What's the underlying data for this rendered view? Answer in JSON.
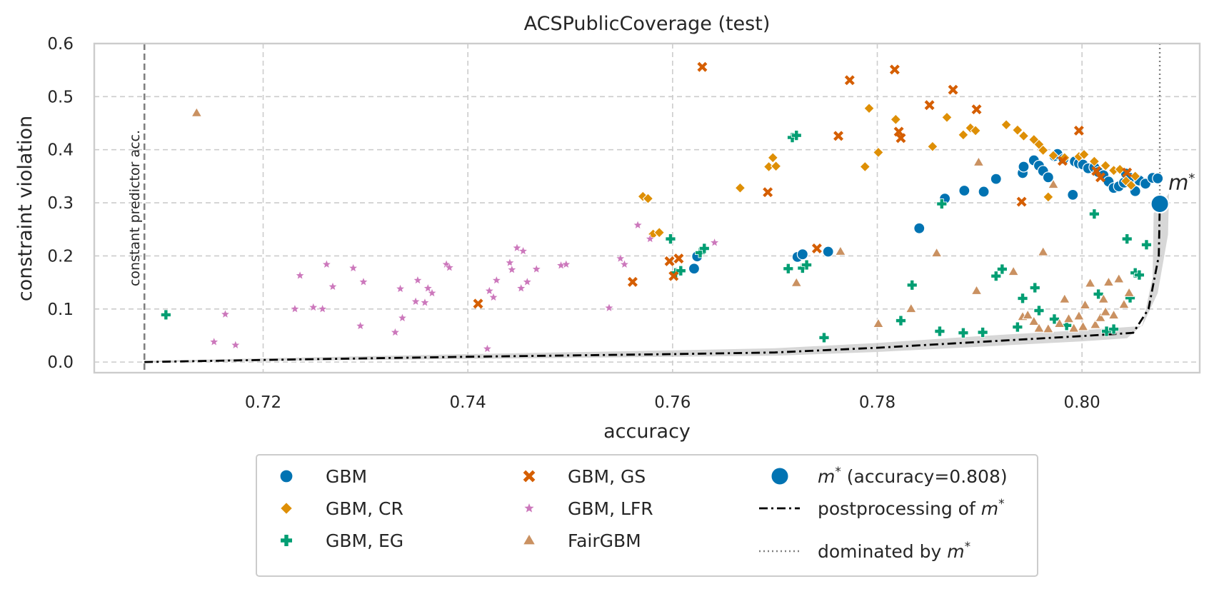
{
  "chart_data": {
    "type": "scatter",
    "title": "ACSPublicCoverage (test)",
    "xlabel": "accuracy",
    "ylabel": "constraint violation",
    "xlim": [
      0.7035,
      0.8115
    ],
    "ylim": [
      -0.02,
      0.6
    ],
    "xticks": [
      0.72,
      0.74,
      0.76,
      0.78,
      0.8
    ],
    "xtick_labels": [
      "0.72",
      "0.74",
      "0.76",
      "0.78",
      "0.80"
    ],
    "yticks": [
      0.0,
      0.1,
      0.2,
      0.3,
      0.4,
      0.5,
      0.6
    ],
    "ytick_labels": [
      "0.0",
      "0.1",
      "0.2",
      "0.3",
      "0.4",
      "0.5",
      "0.6"
    ],
    "grid": true,
    "legend_placement": "below",
    "constant_predictor": {
      "x": 0.7084,
      "label": "constant predictor acc."
    },
    "m_star": {
      "x": 0.8076,
      "y": 0.298,
      "label": "m*",
      "legend_label": "(accuracy=0.808)",
      "color": "#0173b2"
    },
    "dominated_line": {
      "x": 0.8076,
      "legend_label": "dominated by"
    },
    "postprocessing": {
      "legend_label": "postprocessing of",
      "x": [
        0.7084,
        0.72,
        0.74,
        0.76,
        0.77,
        0.78,
        0.79,
        0.8,
        0.805,
        0.8065,
        0.8075,
        0.8076
      ],
      "y": [
        0.0,
        0.004,
        0.01,
        0.015,
        0.018,
        0.027,
        0.038,
        0.049,
        0.055,
        0.1,
        0.2,
        0.298
      ],
      "band_upper": [
        0.002,
        0.007,
        0.015,
        0.022,
        0.026,
        0.036,
        0.049,
        0.06,
        0.068,
        0.13,
        0.24,
        0.318
      ],
      "band_lower": [
        0.0,
        0.002,
        0.006,
        0.01,
        0.012,
        0.019,
        0.029,
        0.039,
        0.045,
        0.07,
        0.16,
        0.28
      ]
    },
    "series": [
      {
        "name": "GBM",
        "marker": "circle",
        "color": "#0173b2",
        "points": [
          [
            0.7621,
            0.176
          ],
          [
            0.7624,
            0.199
          ],
          [
            0.7722,
            0.198
          ],
          [
            0.7727,
            0.203
          ],
          [
            0.7752,
            0.208
          ],
          [
            0.7841,
            0.252
          ],
          [
            0.7866,
            0.308
          ],
          [
            0.7885,
            0.323
          ],
          [
            0.7904,
            0.321
          ],
          [
            0.7916,
            0.345
          ],
          [
            0.7942,
            0.356
          ],
          [
            0.7943,
            0.368
          ],
          [
            0.7953,
            0.38
          ],
          [
            0.7958,
            0.37
          ],
          [
            0.7962,
            0.36
          ],
          [
            0.7967,
            0.348
          ],
          [
            0.7973,
            0.388
          ],
          [
            0.7976,
            0.392
          ],
          [
            0.7982,
            0.383
          ],
          [
            0.7991,
            0.315
          ],
          [
            0.7993,
            0.378
          ],
          [
            0.7997,
            0.374
          ],
          [
            0.8001,
            0.372
          ],
          [
            0.8006,
            0.365
          ],
          [
            0.8012,
            0.367
          ],
          [
            0.8016,
            0.358
          ],
          [
            0.8021,
            0.352
          ],
          [
            0.8026,
            0.34
          ],
          [
            0.8031,
            0.328
          ],
          [
            0.8036,
            0.331
          ],
          [
            0.8041,
            0.338
          ],
          [
            0.8043,
            0.355
          ],
          [
            0.8047,
            0.347
          ],
          [
            0.8052,
            0.322
          ],
          [
            0.8056,
            0.342
          ],
          [
            0.8062,
            0.336
          ],
          [
            0.8069,
            0.347
          ],
          [
            0.8074,
            0.346
          ]
        ]
      },
      {
        "name": "GBM, CR",
        "marker": "diamond",
        "color": "#de8f05",
        "points": [
          [
            0.7571,
            0.312
          ],
          [
            0.7576,
            0.308
          ],
          [
            0.7581,
            0.241
          ],
          [
            0.7587,
            0.244
          ],
          [
            0.7666,
            0.328
          ],
          [
            0.7694,
            0.368
          ],
          [
            0.7698,
            0.385
          ],
          [
            0.7701,
            0.369
          ],
          [
            0.7788,
            0.368
          ],
          [
            0.7792,
            0.478
          ],
          [
            0.7801,
            0.395
          ],
          [
            0.7818,
            0.457
          ],
          [
            0.7854,
            0.406
          ],
          [
            0.7868,
            0.461
          ],
          [
            0.7884,
            0.428
          ],
          [
            0.7891,
            0.441
          ],
          [
            0.7896,
            0.436
          ],
          [
            0.7926,
            0.447
          ],
          [
            0.7937,
            0.437
          ],
          [
            0.7943,
            0.426
          ],
          [
            0.7953,
            0.419
          ],
          [
            0.7958,
            0.41
          ],
          [
            0.7962,
            0.399
          ],
          [
            0.7967,
            0.311
          ],
          [
            0.7972,
            0.389
          ],
          [
            0.7983,
            0.385
          ],
          [
            0.7997,
            0.387
          ],
          [
            0.8002,
            0.391
          ],
          [
            0.8012,
            0.378
          ],
          [
            0.8023,
            0.37
          ],
          [
            0.8031,
            0.361
          ],
          [
            0.8037,
            0.363
          ],
          [
            0.8043,
            0.341
          ],
          [
            0.8048,
            0.333
          ],
          [
            0.8052,
            0.35
          ]
        ]
      },
      {
        "name": "GBM, EG",
        "marker": "plus",
        "color": "#029e73",
        "points": [
          [
            0.7105,
            0.089
          ],
          [
            0.7598,
            0.232
          ],
          [
            0.7603,
            0.168
          ],
          [
            0.7608,
            0.172
          ],
          [
            0.7627,
            0.206
          ],
          [
            0.7631,
            0.214
          ],
          [
            0.7713,
            0.176
          ],
          [
            0.7717,
            0.423
          ],
          [
            0.7721,
            0.427
          ],
          [
            0.7727,
            0.177
          ],
          [
            0.7731,
            0.183
          ],
          [
            0.7748,
            0.046
          ],
          [
            0.7823,
            0.078
          ],
          [
            0.7834,
            0.145
          ],
          [
            0.7861,
            0.058
          ],
          [
            0.7863,
            0.298
          ],
          [
            0.7884,
            0.055
          ],
          [
            0.7903,
            0.056
          ],
          [
            0.7916,
            0.162
          ],
          [
            0.7922,
            0.175
          ],
          [
            0.7937,
            0.066
          ],
          [
            0.7942,
            0.12
          ],
          [
            0.7954,
            0.14
          ],
          [
            0.7958,
            0.097
          ],
          [
            0.7973,
            0.081
          ],
          [
            0.7985,
            0.069
          ],
          [
            0.8012,
            0.279
          ],
          [
            0.8016,
            0.128
          ],
          [
            0.8024,
            0.058
          ],
          [
            0.8031,
            0.062
          ],
          [
            0.8044,
            0.232
          ],
          [
            0.8047,
            0.121
          ],
          [
            0.8052,
            0.168
          ],
          [
            0.8056,
            0.164
          ],
          [
            0.8063,
            0.221
          ]
        ]
      },
      {
        "name": "GBM, GS",
        "marker": "x",
        "color": "#d55e00",
        "points": [
          [
            0.741,
            0.11
          ],
          [
            0.7561,
            0.151
          ],
          [
            0.7597,
            0.19
          ],
          [
            0.7601,
            0.162
          ],
          [
            0.7606,
            0.195
          ],
          [
            0.7629,
            0.556
          ],
          [
            0.7693,
            0.32
          ],
          [
            0.7741,
            0.214
          ],
          [
            0.7762,
            0.426
          ],
          [
            0.7773,
            0.531
          ],
          [
            0.7817,
            0.551
          ],
          [
            0.7821,
            0.434
          ],
          [
            0.7823,
            0.422
          ],
          [
            0.7851,
            0.484
          ],
          [
            0.7874,
            0.513
          ],
          [
            0.7897,
            0.476
          ],
          [
            0.7941,
            0.302
          ],
          [
            0.7981,
            0.379
          ],
          [
            0.7997,
            0.436
          ],
          [
            0.8014,
            0.36
          ],
          [
            0.8018,
            0.348
          ],
          [
            0.8044,
            0.357
          ]
        ]
      },
      {
        "name": "GBM, LFR",
        "marker": "star",
        "color": "#cc78bc",
        "points": [
          [
            0.7152,
            0.038
          ],
          [
            0.7163,
            0.09
          ],
          [
            0.7173,
            0.032
          ],
          [
            0.7231,
            0.1
          ],
          [
            0.7236,
            0.163
          ],
          [
            0.7249,
            0.103
          ],
          [
            0.7258,
            0.1
          ],
          [
            0.7262,
            0.184
          ],
          [
            0.7268,
            0.142
          ],
          [
            0.7288,
            0.177
          ],
          [
            0.7295,
            0.068
          ],
          [
            0.7298,
            0.151
          ],
          [
            0.7329,
            0.056
          ],
          [
            0.7334,
            0.138
          ],
          [
            0.7336,
            0.083
          ],
          [
            0.7349,
            0.114
          ],
          [
            0.7351,
            0.154
          ],
          [
            0.7358,
            0.112
          ],
          [
            0.7361,
            0.139
          ],
          [
            0.7365,
            0.13
          ],
          [
            0.7379,
            0.184
          ],
          [
            0.7382,
            0.178
          ],
          [
            0.7419,
            0.025
          ],
          [
            0.7421,
            0.134
          ],
          [
            0.7425,
            0.122
          ],
          [
            0.7428,
            0.154
          ],
          [
            0.7441,
            0.187
          ],
          [
            0.7443,
            0.174
          ],
          [
            0.7448,
            0.215
          ],
          [
            0.7452,
            0.139
          ],
          [
            0.7454,
            0.209
          ],
          [
            0.7458,
            0.151
          ],
          [
            0.7467,
            0.175
          ],
          [
            0.7491,
            0.182
          ],
          [
            0.7496,
            0.184
          ],
          [
            0.7538,
            0.102
          ],
          [
            0.7549,
            0.195
          ],
          [
            0.7553,
            0.184
          ],
          [
            0.7566,
            0.258
          ],
          [
            0.7578,
            0.232
          ],
          [
            0.7641,
            0.225
          ]
        ]
      },
      {
        "name": "FairGBM",
        "marker": "triangle",
        "color": "#ca9161",
        "points": [
          [
            0.7135,
            0.469
          ],
          [
            0.7721,
            0.149
          ],
          [
            0.7764,
            0.208
          ],
          [
            0.7801,
            0.072
          ],
          [
            0.7833,
            0.1
          ],
          [
            0.7858,
            0.205
          ],
          [
            0.7897,
            0.134
          ],
          [
            0.7899,
            0.376
          ],
          [
            0.7933,
            0.17
          ],
          [
            0.7942,
            0.085
          ],
          [
            0.7947,
            0.088
          ],
          [
            0.7953,
            0.076
          ],
          [
            0.7958,
            0.063
          ],
          [
            0.7962,
            0.207
          ],
          [
            0.7967,
            0.062
          ],
          [
            0.7972,
            0.334
          ],
          [
            0.7978,
            0.072
          ],
          [
            0.7983,
            0.118
          ],
          [
            0.7987,
            0.081
          ],
          [
            0.7992,
            0.063
          ],
          [
            0.7997,
            0.086
          ],
          [
            0.8001,
            0.066
          ],
          [
            0.8003,
            0.107
          ],
          [
            0.8008,
            0.148
          ],
          [
            0.8013,
            0.07
          ],
          [
            0.8018,
            0.083
          ],
          [
            0.8021,
            0.118
          ],
          [
            0.8023,
            0.094
          ],
          [
            0.8026,
            0.15
          ],
          [
            0.8031,
            0.088
          ],
          [
            0.8036,
            0.156
          ],
          [
            0.8041,
            0.108
          ],
          [
            0.8046,
            0.13
          ]
        ]
      }
    ]
  },
  "legend": {
    "items": [
      {
        "label": "GBM",
        "marker": "circle",
        "color": "#0173b2"
      },
      {
        "label": "GBM, CR",
        "marker": "diamond",
        "color": "#de8f05"
      },
      {
        "label": "GBM, EG",
        "marker": "plus",
        "color": "#029e73"
      },
      {
        "label": "GBM, GS",
        "marker": "x",
        "color": "#d55e00"
      },
      {
        "label": "GBM, LFR",
        "marker": "star",
        "color": "#cc78bc"
      },
      {
        "label": "FairGBM",
        "marker": "triangle",
        "color": "#ca9161"
      }
    ],
    "m_star_prefix": "m",
    "m_star_suffix": "(accuracy=0.808)",
    "postprocessing_label": "postprocessing of",
    "dominated_label": "dominated by",
    "m_symbol": "m",
    "star_symbol": "*"
  }
}
